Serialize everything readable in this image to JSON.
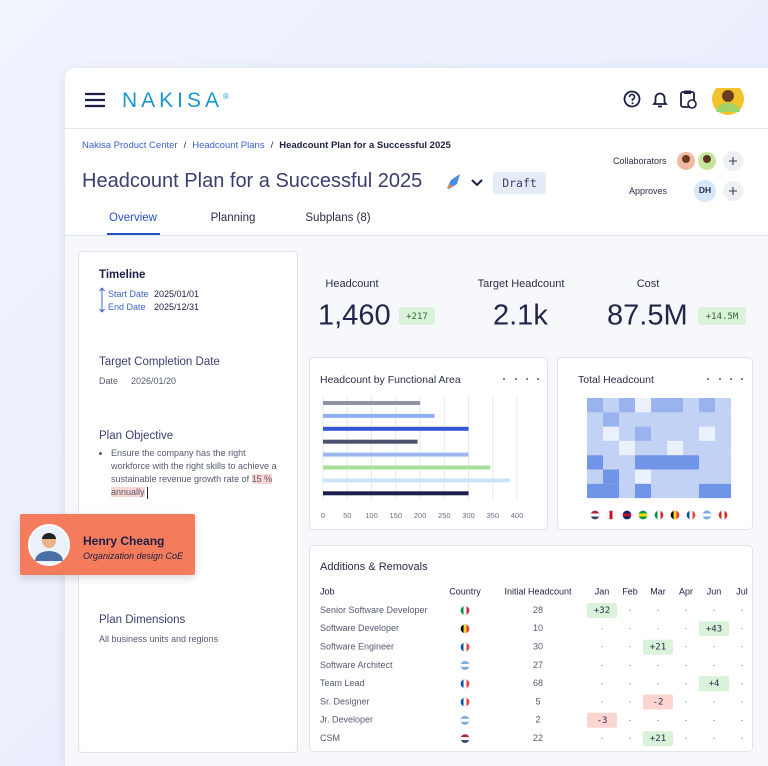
{
  "header": {
    "logo": "NAKISA",
    "logo_mark": "®"
  },
  "breadcrumbs": {
    "items": [
      "Nakisa Product Center",
      "Headcount Plans",
      "Headcount Plan for a Successful 2025"
    ],
    "separator": "/"
  },
  "plan": {
    "title": "Headcount Plan for a Successful 2025",
    "status": "Draft"
  },
  "people": {
    "collaborators_label": "Collaborators",
    "approves_label": "Approves",
    "approver_initials": "DH"
  },
  "tabs": [
    "Overview",
    "Planning",
    "Subplans (8)"
  ],
  "sidebar": {
    "timeline_title": "Timeline",
    "start_label": "Start Date",
    "start_date": "2025/01/01",
    "end_label": "End Date",
    "end_date": "2025/12/31",
    "target_title": "Target Completion Date",
    "date_label": "Date",
    "target_date": "2026/01/20",
    "objective_title": "Plan Objective",
    "objective": "Ensure the company has the right workforce with the right skills to achieve a sustainable revenue growth rate of",
    "objective_highlight": "15 % annually",
    "dimensions_title": "Plan Dimensions",
    "dimensions": "All business units and regions"
  },
  "user_card": {
    "name": "Henry Cheang",
    "role": "Organization design CoE"
  },
  "kpis": [
    {
      "label": "Headcount",
      "value": "1,460",
      "change": "+217"
    },
    {
      "label": "Target Headcount",
      "value": "2.1k"
    },
    {
      "label": "Cost",
      "value": "87.5M",
      "change": "+14.5M"
    }
  ],
  "chart_data": [
    {
      "type": "bar",
      "orientation": "horizontal",
      "title": "Headcount by Functional Area",
      "values": [
        200,
        230,
        300,
        195,
        300,
        345,
        385,
        300
      ],
      "colors": [
        "#8e93a8",
        "#8fb0f0",
        "#3557d6",
        "#4a5170",
        "#9bb7ee",
        "#a5e09a",
        "#c9e3f8",
        "#1b1f4d"
      ],
      "xlim": [
        0,
        400
      ],
      "xticks": [
        0,
        50,
        100,
        150,
        200,
        250,
        300,
        350,
        400
      ],
      "grid": true
    },
    {
      "type": "heatmap",
      "title": "Total Headcount",
      "color": "#3d6fe0",
      "clim": [
        0,
        4
      ],
      "values": [
        [
          2,
          1,
          2,
          0,
          2,
          2,
          1,
          2,
          1
        ],
        [
          1,
          2,
          1,
          1,
          1,
          1,
          1,
          1,
          1
        ],
        [
          1,
          0,
          1,
          2,
          1,
          1,
          1,
          0,
          1
        ],
        [
          1,
          1,
          0,
          1,
          1,
          0,
          1,
          1,
          1
        ],
        [
          3,
          1,
          1,
          3,
          3,
          3,
          3,
          1,
          1
        ],
        [
          1,
          3,
          1,
          0,
          1,
          1,
          1,
          1,
          1
        ],
        [
          3,
          3,
          1,
          3,
          1,
          1,
          1,
          3,
          3
        ]
      ],
      "column_flags": [
        {
          "stripes": [
            "#b22234",
            "#ffffff",
            "#3c3b6e"
          ],
          "direction": "horizontal"
        },
        {
          "stripes": [
            "#ffffff",
            "#ce1124",
            "#ffffff"
          ],
          "direction": "vertical"
        },
        {
          "stripes": [
            "#012169",
            "#c8102e",
            "#012169"
          ],
          "direction": "horizontal"
        },
        {
          "stripes": [
            "#009c3b",
            "#ffdf00",
            "#009c3b"
          ],
          "direction": "horizontal"
        },
        {
          "stripes": [
            "#009246",
            "#ffffff",
            "#ce2b37"
          ],
          "direction": "vertical"
        },
        {
          "stripes": [
            "#000000",
            "#fdda24",
            "#ef3340"
          ],
          "direction": "vertical"
        },
        {
          "stripes": [
            "#0055a4",
            "#ffffff",
            "#ef4135"
          ],
          "direction": "vertical"
        },
        {
          "stripes": [
            "#74acdf",
            "#ffffff",
            "#74acdf"
          ],
          "direction": "horizontal"
        },
        {
          "stripes": [
            "#d52b1e",
            "#ffffff",
            "#d52b1e"
          ],
          "direction": "vertical"
        }
      ]
    }
  ],
  "table": {
    "title": "Additions & Removals",
    "columns": [
      "Job",
      "Country",
      "Initial Headcount",
      "Jan",
      "Feb",
      "Mar",
      "Apr",
      "Jun",
      "Jul"
    ],
    "rows": [
      {
        "job": "Senior Software Developer",
        "flag": {
          "stripes": [
            "#009246",
            "#ffffff",
            "#ce2b37"
          ],
          "direction": "vertical"
        },
        "initial": "28",
        "months": [
          "+32",
          "-",
          "-",
          "-",
          "-",
          "-"
        ]
      },
      {
        "job": "Software Developer",
        "flag": {
          "stripes": [
            "#000000",
            "#fdda24",
            "#ef3340"
          ],
          "direction": "vertical"
        },
        "initial": "10",
        "months": [
          "-",
          "-",
          "-",
          "-",
          "+43",
          "-"
        ]
      },
      {
        "job": "Software Engineer",
        "flag": {
          "stripes": [
            "#0055a4",
            "#ffffff",
            "#ef4135"
          ],
          "direction": "vertical"
        },
        "initial": "30",
        "months": [
          "-",
          "-",
          "+21",
          "-",
          "-",
          "-"
        ]
      },
      {
        "job": "Software Architect",
        "flag": {
          "stripes": [
            "#74acdf",
            "#ffffff",
            "#74acdf"
          ],
          "direction": "horizontal"
        },
        "initial": "27",
        "months": [
          "-",
          "-",
          "-",
          "-",
          "-",
          "-"
        ]
      },
      {
        "job": "Team Lead",
        "flag": {
          "stripes": [
            "#0055a4",
            "#ffffff",
            "#ef4135"
          ],
          "direction": "vertical"
        },
        "initial": "68",
        "months": [
          "-",
          "-",
          "-",
          "-",
          "+4",
          "-"
        ]
      },
      {
        "job": "Sr. Designer",
        "flag": {
          "stripes": [
            "#0055a4",
            "#ffffff",
            "#ef4135"
          ],
          "direction": "vertical"
        },
        "initial": "5",
        "months": [
          "-",
          "-",
          "-2",
          "-",
          "-",
          "-"
        ]
      },
      {
        "job": "Jr. Developer",
        "flag": {
          "stripes": [
            "#74acdf",
            "#ffffff",
            "#74acdf"
          ],
          "direction": "horizontal"
        },
        "initial": "2",
        "months": [
          "-3",
          "-",
          "-",
          "-",
          "-",
          "-"
        ]
      },
      {
        "job": "CSM",
        "flag": {
          "stripes": [
            "#b22234",
            "#ffffff",
            "#3c3b6e"
          ],
          "direction": "horizontal"
        },
        "initial": "22",
        "months": [
          "-",
          "-",
          "+21",
          "-",
          "-",
          "-"
        ]
      }
    ]
  }
}
